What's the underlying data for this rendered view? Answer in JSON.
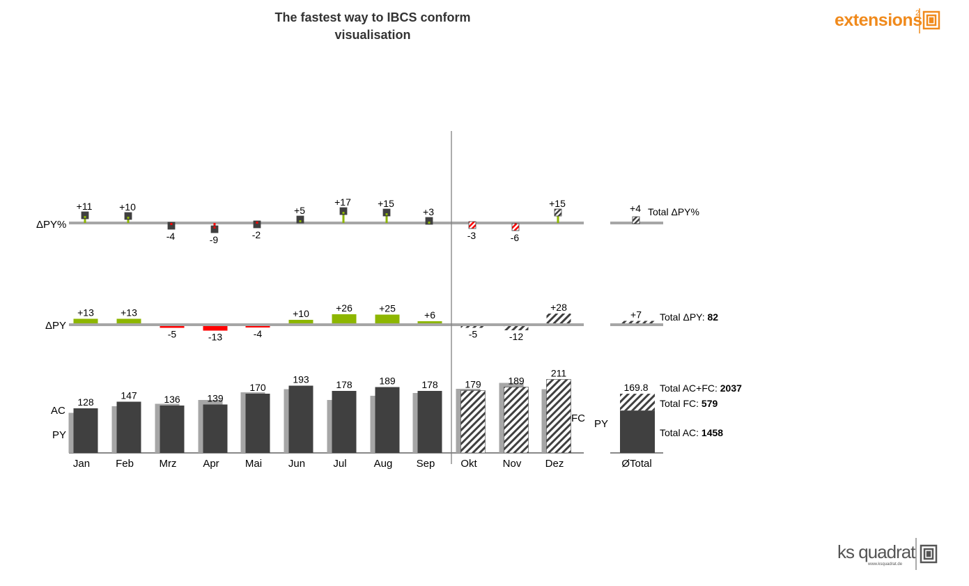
{
  "title": {
    "line1": "The fastest  way to IBCS conform",
    "line2": "visualisation"
  },
  "logos": {
    "extensions": {
      "text": "extensions",
      "superscript": "2",
      "color": "#F08A1C"
    },
    "ksquadrat": {
      "text": "ks quadrat",
      "url_text": "www.ksquadrat.de",
      "color": "#555555"
    }
  },
  "colors": {
    "ac": "#404040",
    "py": "#A6A6A6",
    "positive": "#8DB600",
    "negative": "#FF0000",
    "axis": "#A6A6A6",
    "separator": "#808080"
  },
  "chart_data": {
    "type": "bar",
    "categories": [
      "Jan",
      "Feb",
      "Mrz",
      "Apr",
      "Mai",
      "Jun",
      "Jul",
      "Aug",
      "Sep",
      "Okt",
      "Nov",
      "Dez"
    ],
    "forecast_from_index": 9,
    "series": [
      {
        "name": "AC",
        "values": [
          128,
          147,
          136,
          139,
          170,
          193,
          178,
          189,
          178,
          null,
          null,
          null
        ]
      },
      {
        "name": "FC",
        "values": [
          null,
          null,
          null,
          null,
          null,
          null,
          null,
          null,
          null,
          179,
          189,
          211
        ]
      },
      {
        "name": "PY",
        "values": [
          115,
          134,
          141,
          152,
          174,
          183,
          152,
          164,
          172,
          184,
          201,
          183
        ]
      },
      {
        "name": "ΔPY",
        "values": [
          13,
          13,
          -5,
          -13,
          -4,
          10,
          26,
          25,
          6,
          -5,
          -12,
          28
        ]
      },
      {
        "name": "ΔPY%",
        "values": [
          11,
          10,
          -4,
          -9,
          -2,
          5,
          17,
          15,
          3,
          -3,
          -6,
          15
        ]
      }
    ],
    "row_labels": {
      "delta_pct": "ΔPY%",
      "delta_abs": "ΔPY",
      "ac": "AC",
      "py": "PY",
      "fc": "FC"
    },
    "value_labels": {
      "main": [
        "128",
        "147",
        "136",
        "139",
        "170",
        "193",
        "178",
        "189",
        "178",
        "179",
        "189",
        "211"
      ],
      "delta_abs": [
        "+13",
        "+13",
        "-5",
        "-13",
        "-4",
        "+10",
        "+26",
        "+25",
        "+6",
        "-5",
        "-12",
        "+28"
      ],
      "delta_pct": [
        "+11",
        "+10",
        "-4",
        "-9",
        "-2",
        "+5",
        "+17",
        "+15",
        "+3",
        "-3",
        "-6",
        "+15"
      ]
    },
    "total": {
      "category": "ØTotal",
      "avg_ac_fc": 169.8,
      "avg_ac_fc_label": "169.8",
      "avg_ac_portion": 121.5,
      "avg_py": 162.9,
      "delta_abs": 7,
      "delta_abs_label": "+7",
      "delta_pct": 4,
      "delta_pct_label": "+4",
      "py_label": "PY",
      "annotations": {
        "total_ac_fc": {
          "label": "Total AC+FC: ",
          "value": "2037"
        },
        "total_fc": {
          "label": "Total FC: ",
          "value": "579"
        },
        "total_ac": {
          "label": "Total AC: ",
          "value": "1458"
        },
        "total_dpy": {
          "label": "Total ΔPY: ",
          "value": "82"
        },
        "total_dpy_pct": {
          "label": "Total ΔPY%",
          "value": ""
        }
      }
    }
  }
}
